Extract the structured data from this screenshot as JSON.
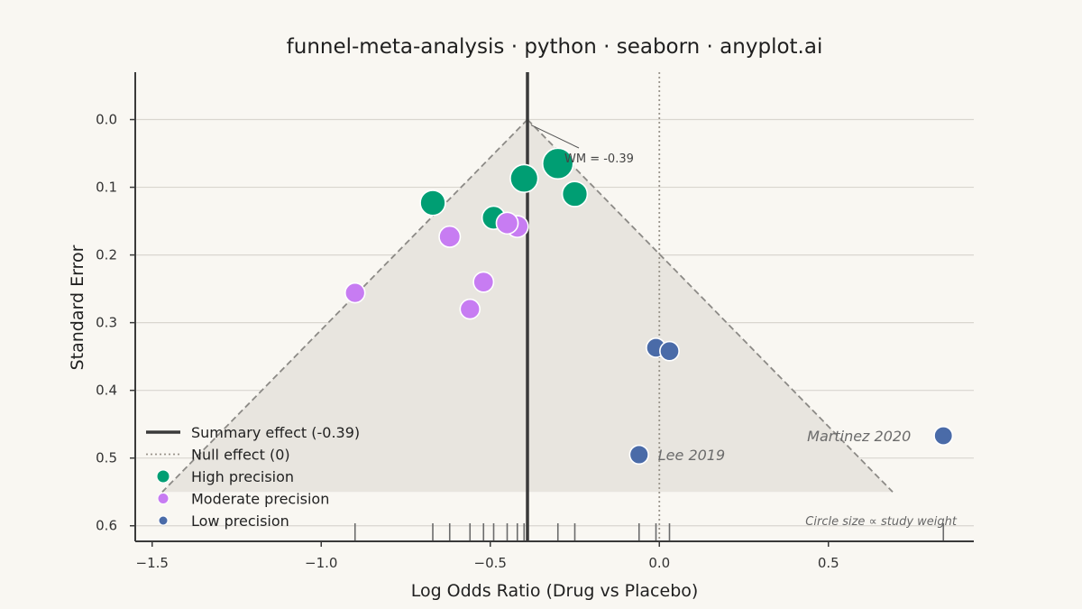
{
  "chart_data": {
    "type": "scatter",
    "title": "funnel-meta-analysis · python · seaborn · anyplot.ai",
    "xlabel": "Log Odds Ratio (Drug vs Placebo)",
    "ylabel": "Standard Error",
    "xlim": [
      -1.55,
      0.93
    ],
    "ylim": [
      0.623,
      -0.07
    ],
    "y_inverted": true,
    "xticks": [
      -1.5,
      -1.0,
      -0.5,
      0.0,
      0.5
    ],
    "xtick_labels": [
      "−1.5",
      "−1.0",
      "−0.5",
      "0.0",
      "0.5"
    ],
    "yticks": [
      0.0,
      0.1,
      0.2,
      0.3,
      0.4,
      0.5,
      0.6
    ],
    "ytick_labels": [
      "0.0",
      "0.1",
      "0.2",
      "0.3",
      "0.4",
      "0.5",
      "0.6"
    ],
    "grid": "horizontal",
    "summary_effect": -0.39,
    "summary_label": "Summary effect (-0.39)",
    "null_effect": 0,
    "null_label": "Null effect (0)",
    "funnel": {
      "apex": [
        -0.39,
        0.0
      ],
      "left_base": [
        -1.47,
        0.55
      ],
      "right_base": [
        0.69,
        0.55
      ]
    },
    "wm_annotation": "WM = -0.39",
    "series": [
      {
        "name": "High precision",
        "color": "#009e73",
        "points": [
          {
            "x": -0.3,
            "y": 0.065,
            "s": 1.0
          },
          {
            "x": -0.4,
            "y": 0.087,
            "s": 0.85
          },
          {
            "x": -0.25,
            "y": 0.11,
            "s": 0.72
          },
          {
            "x": -0.67,
            "y": 0.123,
            "s": 0.72
          },
          {
            "x": -0.49,
            "y": 0.145,
            "s": 0.62
          }
        ]
      },
      {
        "name": "Moderate precision",
        "color": "#c77cf2",
        "points": [
          {
            "x": -0.42,
            "y": 0.158,
            "s": 0.55
          },
          {
            "x": -0.45,
            "y": 0.153,
            "s": 0.55
          },
          {
            "x": -0.62,
            "y": 0.173,
            "s": 0.52
          },
          {
            "x": -0.9,
            "y": 0.256,
            "s": 0.45
          },
          {
            "x": -0.52,
            "y": 0.24,
            "s": 0.47
          },
          {
            "x": -0.56,
            "y": 0.28,
            "s": 0.45
          }
        ]
      },
      {
        "name": "Low precision",
        "color": "#4a6ba8",
        "points": [
          {
            "x": -0.01,
            "y": 0.337,
            "s": 0.42
          },
          {
            "x": 0.03,
            "y": 0.342,
            "s": 0.42
          },
          {
            "x": -0.06,
            "y": 0.495,
            "s": 0.4
          },
          {
            "x": 0.84,
            "y": 0.467,
            "s": 0.38
          }
        ]
      }
    ],
    "point_labels": [
      {
        "text": "Martinez 2020",
        "x": 0.84,
        "y": 0.467
      },
      {
        "text": "Lee 2019",
        "x": -0.06,
        "y": 0.495
      }
    ],
    "rug_x": [
      -0.9,
      -0.67,
      -0.62,
      -0.56,
      -0.52,
      -0.49,
      -0.45,
      -0.42,
      -0.4,
      -0.3,
      -0.25,
      -0.06,
      -0.01,
      0.03,
      0.84
    ],
    "note": "Circle size ∝ study weight",
    "colors": {
      "summary": "#3a3a3a",
      "null": "#9a958c",
      "funnel_fill": "#e8e5df",
      "funnel_edge": "#8c8a86",
      "grid": "#d9d6cf"
    }
  }
}
